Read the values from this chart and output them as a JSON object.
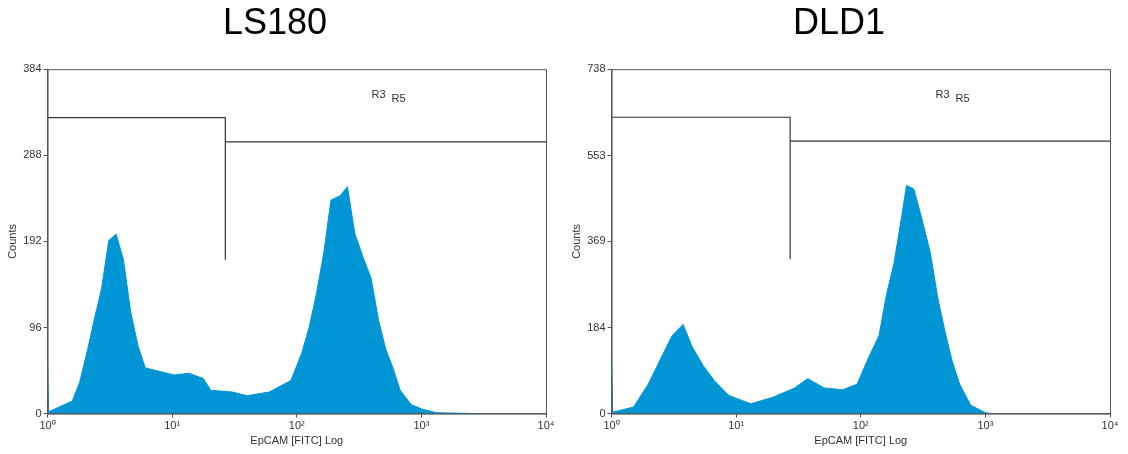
{
  "chart_data": [
    {
      "type": "area",
      "title": "LS180",
      "xlabel": "EpCAM [FITC] Log",
      "ylabel": "Counts",
      "log": "x",
      "grid": false,
      "legend": false,
      "xlim": [
        1,
        10000
      ],
      "xticks": [
        {
          "value": 1,
          "label": "10⁰"
        },
        {
          "value": 10,
          "label": "10¹"
        },
        {
          "value": 100,
          "label": "10²"
        },
        {
          "value": 1000,
          "label": "10³"
        },
        {
          "value": 10000,
          "label": "10⁴"
        }
      ],
      "ylim": [
        0,
        384
      ],
      "yticks": [
        0,
        96,
        192,
        288,
        384
      ],
      "annotations": [
        "R3",
        "R5"
      ],
      "series": [
        {
          "type": "line",
          "color": "#333333",
          "x": [
            1,
            26.7,
            26.7
          ],
          "values": [
            330,
            330,
            172
          ]
        },
        {
          "type": "line",
          "color": "#333333",
          "x": [
            26.7,
            10000
          ],
          "values": [
            303,
            303
          ]
        },
        {
          "color": "#0096d6",
          "x": [
            1,
            1.02,
            1.58,
            1.81,
            2.07,
            2.37,
            2.71,
            3.1,
            3.55,
            4.06,
            4.64,
            5.31,
            6.08,
            7.95,
            10.4,
            13.6,
            17.8,
            20.4,
            30.5,
            39.9,
            60,
            89.8,
            110,
            126,
            144,
            165,
            188,
            223,
            255,
            292,
            345,
            395,
            452,
            517,
            591,
            676,
            828,
            1010,
            1320,
            2760
          ],
          "values": [
            59,
            2,
            14,
            35,
            68,
            105,
            139,
            193,
            200,
            172,
            114,
            76,
            51,
            47,
            43,
            45,
            39,
            26,
            24,
            20,
            24,
            37,
            68,
            97,
            134,
            180,
            238,
            243,
            253,
            201,
            172,
            151,
            105,
            72,
            51,
            26,
            10,
            5,
            1,
            0
          ]
        }
      ]
    },
    {
      "type": "area",
      "title": "DLD1",
      "xlabel": "EpCAM [FITC] Log",
      "ylabel": "Counts",
      "log": "x",
      "grid": false,
      "legend": false,
      "xlim": [
        1,
        10000
      ],
      "xticks": [
        {
          "value": 1,
          "label": "10⁰"
        },
        {
          "value": 10,
          "label": "10¹"
        },
        {
          "value": 100,
          "label": "10²"
        },
        {
          "value": 1000,
          "label": "10³"
        },
        {
          "value": 10000,
          "label": "10⁴"
        }
      ],
      "ylim": [
        0,
        738
      ],
      "yticks": [
        0,
        184,
        369,
        553,
        738
      ],
      "annotations": [
        "R3",
        "R5"
      ],
      "series": [
        {
          "type": "line",
          "color": "#333333",
          "x": [
            1,
            27.1,
            27.1
          ],
          "values": [
            635,
            635,
            332
          ]
        },
        {
          "type": "line",
          "color": "#333333",
          "x": [
            27.1,
            10000
          ],
          "values": [
            584,
            584
          ]
        },
        {
          "color": "#0096d6",
          "x": [
            1,
            1.02,
            1.5,
            1.97,
            2.58,
            3.06,
            3.75,
            4.44,
            5.43,
            6.66,
            8.73,
            13.1,
            19.7,
            29.5,
            37.5,
            50.8,
            71.3,
            93.4,
            115,
            140,
            161,
            184,
            211,
            233,
            267,
            305,
            362,
            415,
            475,
            543,
            622,
            762,
            1000,
            1100
          ],
          "values": [
            123,
            3,
            14,
            63,
            127,
            167,
            191,
            143,
            103,
            71,
            39,
            21,
            35,
            55,
            75,
            55,
            51,
            63,
            119,
            167,
            256,
            320,
            416,
            489,
            481,
            424,
            344,
            248,
            175,
            111,
            63,
            18,
            2,
            0
          ]
        }
      ]
    }
  ]
}
